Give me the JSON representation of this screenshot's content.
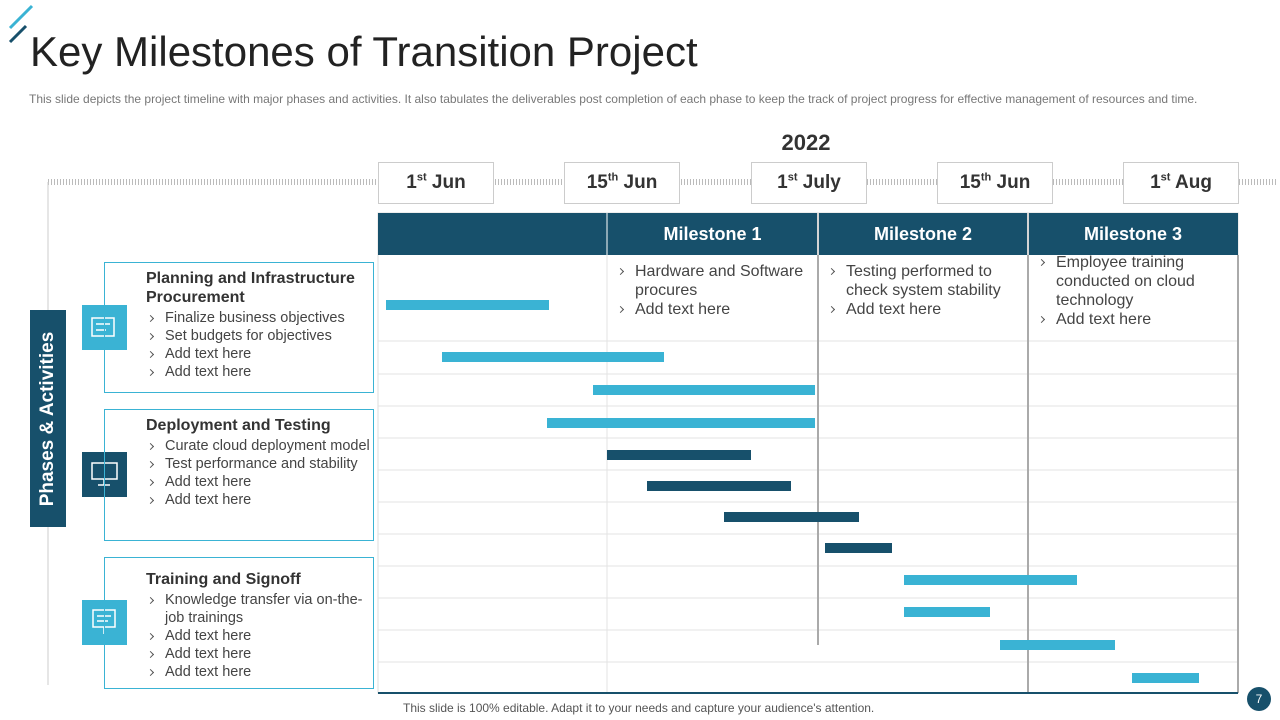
{
  "header": {
    "title": "Key Milestones of Transition Project",
    "subtitle": "This slide depicts the project timeline with major phases and activities. It also tabulates the deliverables  post completion of each phase to keep the track of project progress for effective  management  of resources and time."
  },
  "year": "2022",
  "dates": [
    {
      "day": "1",
      "suffix": "st",
      "month": "Jun"
    },
    {
      "day": "15",
      "suffix": "th",
      "month": "Jun"
    },
    {
      "day": "1",
      "suffix": "st",
      "month": "July"
    },
    {
      "day": "15",
      "suffix": "th",
      "month": "Jun"
    },
    {
      "day": "1",
      "suffix": "st",
      "month": "Aug"
    }
  ],
  "milestones": [
    {
      "title": "Milestone 1",
      "items": [
        "Hardware and Software procures",
        "Add text here"
      ]
    },
    {
      "title": "Milestone 2",
      "items": [
        "Testing performed to check system stability",
        "Add text here"
      ]
    },
    {
      "title": "Milestone 3",
      "items": [
        "Employee training conducted on cloud technology",
        "Add text here"
      ]
    }
  ],
  "side_label": "Phases & Activities",
  "phases": [
    {
      "title": "Planning and Infrastructure Procurement",
      "items": [
        "Finalize business objectives",
        "Set budgets for objectives",
        "Add text here",
        "Add text here"
      ]
    },
    {
      "title": "Deployment and Testing",
      "items": [
        "Curate cloud deployment model",
        "Test performance and stability",
        "Add text here",
        "Add text here"
      ]
    },
    {
      "title": "Training and Signoff",
      "items": [
        "Knowledge transfer via on-the-job trainings",
        "Add text here",
        "Add text here",
        "Add text here"
      ]
    }
  ],
  "footer": "This slide is 100% editable. Adapt it to your needs and capture your audience's attention.",
  "page_number": "7"
}
